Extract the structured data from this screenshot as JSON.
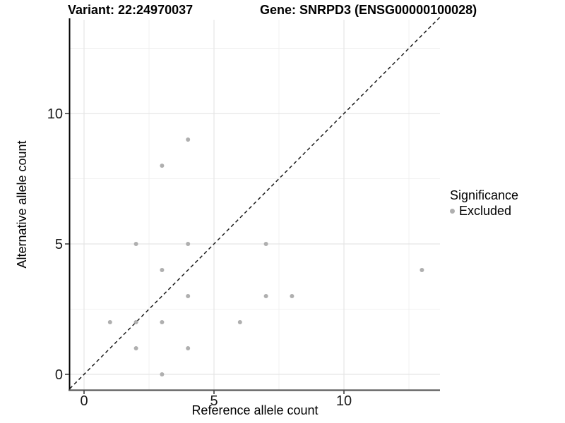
{
  "header": {
    "variant_title": "Variant: 22:24970037",
    "gene_title": "Gene: SNRPD3 (ENSG00000100028)"
  },
  "axes": {
    "x_label": "Reference allele count",
    "y_label": "Alternative allele count"
  },
  "legend": {
    "title": "Significance",
    "items": [
      {
        "label": "Excluded",
        "shape": "circle",
        "color": "#afafaf"
      }
    ]
  },
  "chart_data": {
    "type": "scatter",
    "title_left": "Variant: 22:24970037",
    "title_right": "Gene: SNRPD3 (ENSG00000100028)",
    "xlabel": "Reference allele count",
    "ylabel": "Alternative allele count",
    "xlim": [
      -0.55,
      13.7
    ],
    "ylim": [
      -0.6,
      13.6
    ],
    "x_ticks": [
      0,
      5,
      10
    ],
    "y_ticks": [
      0,
      5,
      10
    ],
    "minor_gridlines": [
      2.5,
      7.5,
      12.5
    ],
    "series": [
      {
        "name": "Excluded",
        "points": [
          [
            1,
            2
          ],
          [
            2,
            1
          ],
          [
            2,
            2
          ],
          [
            2,
            5
          ],
          [
            3,
            0
          ],
          [
            3,
            2
          ],
          [
            3,
            4
          ],
          [
            3,
            8
          ],
          [
            4,
            1
          ],
          [
            4,
            3
          ],
          [
            4,
            5
          ],
          [
            4,
            9
          ],
          [
            6,
            2
          ],
          [
            7,
            3
          ],
          [
            7,
            5
          ],
          [
            8,
            3
          ],
          [
            13,
            4
          ]
        ]
      }
    ],
    "identity_line": {
      "slope": 1,
      "intercept": 0,
      "style": "dashed",
      "color": "#1a1a1a"
    },
    "grid": "on",
    "legend_position": "right",
    "point_color": "#afafaf",
    "grid_major_color": "#e5e5e5",
    "grid_minor_color": "#f0f0f0",
    "x_axis_line_color": "#595959",
    "y_axis_line_color": "#000000",
    "tick_mark_color": "#333333",
    "tick_label_color": "#1a1a1a"
  }
}
